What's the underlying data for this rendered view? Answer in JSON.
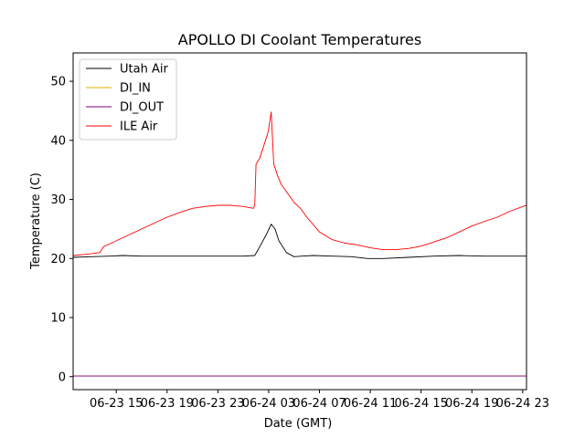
{
  "chart_data": {
    "type": "line",
    "title": "APOLLO DI Coolant Temperatures",
    "xlabel": "Date (GMT)",
    "ylabel": "Temperature (C)",
    "xlim": [
      11.6,
      47.3
    ],
    "ylim": [
      -2.2,
      54.8
    ],
    "grid": false,
    "legend_position": "top-left",
    "x_unit": "hours since 2023-06-23 00:00 GMT",
    "x_ticks": [
      {
        "value": 15,
        "label": "06-23 15"
      },
      {
        "value": 19,
        "label": "06-23 19"
      },
      {
        "value": 23,
        "label": "06-23 23"
      },
      {
        "value": 27,
        "label": "06-24 03"
      },
      {
        "value": 31,
        "label": "06-24 07"
      },
      {
        "value": 35,
        "label": "06-24 11"
      },
      {
        "value": 39,
        "label": "06-24 15"
      },
      {
        "value": 43,
        "label": "06-24 19"
      },
      {
        "value": 47,
        "label": "06-24 23"
      }
    ],
    "y_ticks": [
      {
        "value": 0,
        "label": "0"
      },
      {
        "value": 10,
        "label": "10"
      },
      {
        "value": 20,
        "label": "20"
      },
      {
        "value": 30,
        "label": "30"
      },
      {
        "value": 40,
        "label": "40"
      },
      {
        "value": 50,
        "label": "50"
      }
    ],
    "series": [
      {
        "name": "Utah Air",
        "color": "#000000",
        "x": [
          11.6,
          13.0,
          14.5,
          15.5,
          17.0,
          19.0,
          21.0,
          23.0,
          25.0,
          25.9,
          26.3,
          26.8,
          27.2,
          27.5,
          27.8,
          28.4,
          29.0,
          29.6,
          30.5,
          32.0,
          33.5,
          34.8,
          36.0,
          38.0,
          40.0,
          42.0,
          44.0,
          46.0,
          47.3
        ],
        "y": [
          20.2,
          20.3,
          20.4,
          20.5,
          20.4,
          20.4,
          20.4,
          20.4,
          20.4,
          20.5,
          22.0,
          24.0,
          25.8,
          25.0,
          23.0,
          21.0,
          20.3,
          20.4,
          20.5,
          20.4,
          20.3,
          20.0,
          20.0,
          20.2,
          20.4,
          20.5,
          20.4,
          20.4,
          20.4
        ]
      },
      {
        "name": "DI_IN",
        "color": "#d4b200",
        "x": [
          11.6,
          47.3
        ],
        "y": [
          0.1,
          0.1
        ]
      },
      {
        "name": "DI_OUT",
        "color": "#7a0078",
        "x": [
          11.6,
          47.3
        ],
        "y": [
          0.1,
          0.1
        ]
      },
      {
        "name": "ILE Air",
        "color": "#ff0000",
        "x": [
          11.6,
          12.5,
          13.0,
          13.7,
          14.0,
          14.5,
          15.0,
          16.0,
          17.0,
          18.0,
          19.0,
          20.0,
          21.0,
          22.0,
          23.0,
          24.0,
          25.0,
          25.8,
          25.9,
          26.0,
          26.3,
          26.6,
          26.9,
          27.0,
          27.1,
          27.2,
          27.4,
          27.7,
          28.0,
          28.5,
          29.0,
          29.5,
          30.0,
          30.6,
          31.0,
          32.0,
          33.0,
          34.0,
          35.0,
          36.0,
          37.0,
          38.0,
          38.8,
          39.5,
          40.0,
          41.0,
          42.0,
          43.0,
          44.0,
          45.0,
          46.0,
          47.0,
          47.3
        ],
        "y": [
          20.5,
          20.7,
          20.8,
          21.0,
          22.0,
          22.5,
          23.0,
          24.0,
          25.0,
          26.0,
          27.0,
          27.8,
          28.5,
          28.8,
          29.0,
          29.0,
          28.8,
          28.5,
          29.0,
          36.0,
          37.0,
          39.0,
          41.0,
          42.0,
          43.5,
          44.8,
          36.0,
          34.0,
          32.5,
          31.0,
          29.5,
          28.5,
          27.0,
          25.5,
          24.5,
          23.2,
          22.6,
          22.3,
          21.8,
          21.5,
          21.5,
          21.7,
          22.0,
          22.4,
          22.8,
          23.5,
          24.5,
          25.5,
          26.3,
          27.0,
          28.0,
          28.8,
          29.0
        ]
      }
    ]
  }
}
